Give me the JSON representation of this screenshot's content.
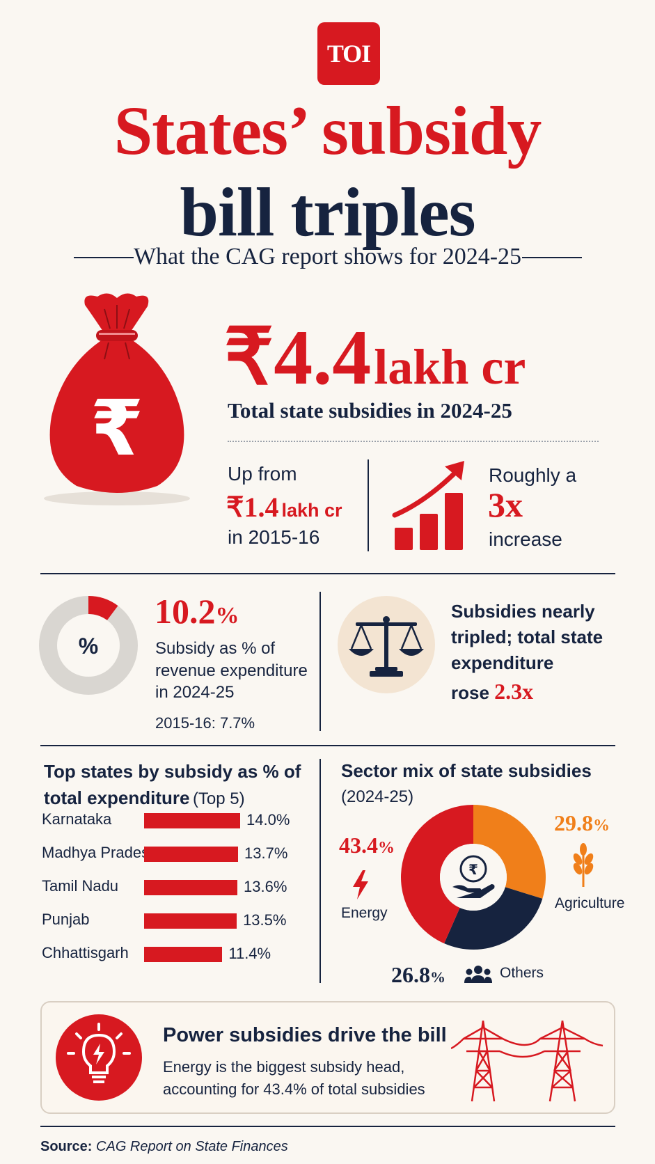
{
  "header": {
    "logo": "TOI",
    "title_line1": "States’ subsidy",
    "title_line2": "bill triples",
    "subtitle": "What the CAG report shows for 2024-25"
  },
  "hero": {
    "value_number": "₹4.4",
    "value_unit": "lakh cr",
    "caption": "Total state subsidies in 2024-25",
    "left_stat": {
      "line1": "Up from",
      "value_number": "₹1.4",
      "value_unit": "lakh cr",
      "line3": "in 2015-16"
    },
    "right_stat": {
      "line1": "Roughly a",
      "value": "3x",
      "line3": "increase"
    }
  },
  "share": {
    "icon_text": "%",
    "value": "10.2",
    "value_unit": "%",
    "fraction": 0.102,
    "line1": "Subsidy as % of",
    "line2": "revenue expenditure",
    "line3": "in 2024-25",
    "comparison": "2015-16: 7.7%"
  },
  "comparison": {
    "line1": "Subsidies nearly",
    "line2": "tripled; total state",
    "line3": "expenditure",
    "line4_prefix": "rose",
    "line4_value": "2.3x"
  },
  "top_states": {
    "title_bold_line1": "Top states by subsidy as % of",
    "title_bold_line2": "total expenditure",
    "title_suffix": "(Top 5)",
    "items": [
      {
        "name": "Karnataka",
        "value": 14.0,
        "label": "14.0%"
      },
      {
        "name": "Madhya Pradesh",
        "value": 13.7,
        "label": "13.7%"
      },
      {
        "name": "Tamil Nadu",
        "value": 13.6,
        "label": "13.6%"
      },
      {
        "name": "Punjab",
        "value": 13.5,
        "label": "13.5%"
      },
      {
        "name": "Chhattisgarh",
        "value": 11.4,
        "label": "11.4%"
      }
    ]
  },
  "sector_mix": {
    "title": "Sector mix of state subsidies",
    "subtitle": "(2024-25)",
    "center_icon_text": "₹",
    "segments": [
      {
        "name": "Energy",
        "value": 43.4,
        "value_text": "43.4",
        "unit": "%",
        "color": "#d71920"
      },
      {
        "name": "Agriculture",
        "value": 29.8,
        "value_text": "29.8",
        "unit": "%",
        "color": "#f07f1a"
      },
      {
        "name": "Others",
        "value": 26.8,
        "value_text": "26.8",
        "unit": "%",
        "color": "#16233f"
      }
    ]
  },
  "callout": {
    "title": "Power subsidies drive the bill",
    "line1": "Energy is the biggest subsidy head,",
    "line2": "accounting for 43.4% of total subsidies"
  },
  "source": {
    "label": "Source:",
    "text": "CAG Report on State Finances"
  },
  "colors": {
    "red": "#d71920",
    "navy": "#16233f",
    "orange": "#f07f1a",
    "gray": "#d9d6d1",
    "background": "#faf7f2"
  }
}
